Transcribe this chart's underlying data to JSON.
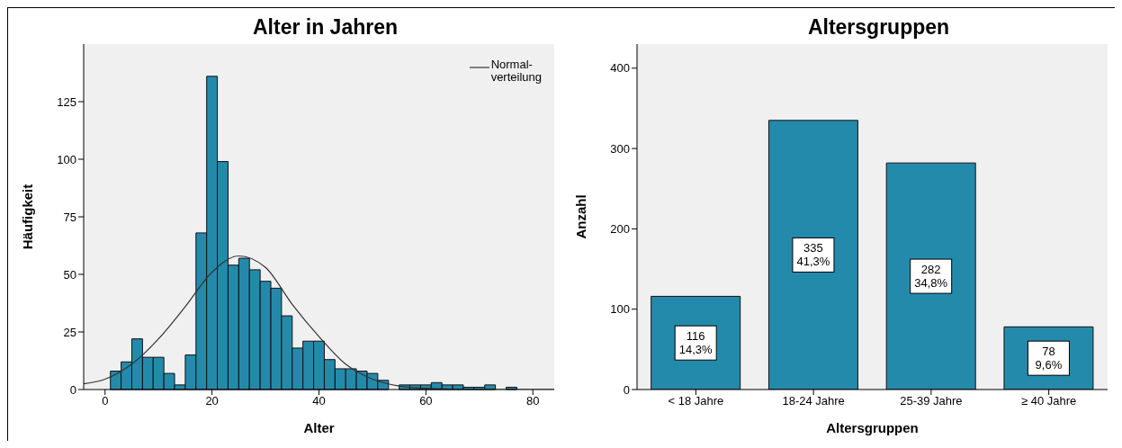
{
  "chart_data": [
    {
      "type": "histogram",
      "title": "Alter in Jahren",
      "xlabel": "Alter",
      "ylabel": "Häufigkeit",
      "color": "#248aac",
      "bins": [
        1,
        3,
        5,
        7,
        9,
        11,
        13,
        15,
        17,
        19,
        21,
        23,
        25,
        27,
        29,
        31,
        33,
        35,
        37,
        39,
        41,
        43,
        45,
        47,
        49,
        51,
        53,
        55,
        57,
        59,
        61,
        63,
        65,
        67,
        69,
        71,
        73,
        75,
        77
      ],
      "values": [
        8,
        12,
        22,
        14,
        14,
        7,
        2,
        15,
        68,
        136,
        99,
        54,
        57,
        52,
        47,
        44,
        32,
        18,
        21,
        21,
        13,
        9,
        9,
        8,
        7,
        4,
        0,
        2,
        2,
        2,
        3,
        2,
        2,
        1,
        1,
        2,
        0,
        1
      ],
      "series": [
        {
          "type": "line",
          "name": "Normal-\nverteilung",
          "color": "#333333",
          "x": [
            -4,
            0,
            5,
            10,
            15,
            20,
            25,
            30,
            35,
            40,
            45,
            50,
            55,
            60,
            65,
            70,
            75,
            84
          ],
          "values": [
            2.5,
            4.5,
            11,
            22,
            36,
            51,
            58,
            53,
            37,
            23,
            11,
            4.5,
            1.5,
            0.5,
            0.1,
            0,
            0,
            0
          ]
        }
      ],
      "xlim": [
        -4,
        84
      ],
      "xticks": [
        0,
        20,
        40,
        60,
        80
      ],
      "ylim": [
        0,
        150
      ],
      "yticks": [
        0,
        25,
        50,
        75,
        100,
        125
      ],
      "legend": "top right"
    },
    {
      "type": "bar",
      "title": "Altersgruppen",
      "xlabel": "Altersgruppen",
      "ylabel": "Anzahl",
      "color": "#248aac",
      "categories": [
        "< 18 Jahre",
        "18-24 Jahre",
        "25-39 Jahre",
        "≥ 40 Jahre"
      ],
      "values": [
        116,
        335,
        282,
        78
      ],
      "value_labels": [
        "116\n14,3%",
        "335\n41,3%",
        "282\n34,8%",
        "78\n9,6%"
      ],
      "ylim": [
        0,
        430
      ],
      "yticks": [
        0,
        100,
        200,
        300,
        400
      ]
    }
  ]
}
